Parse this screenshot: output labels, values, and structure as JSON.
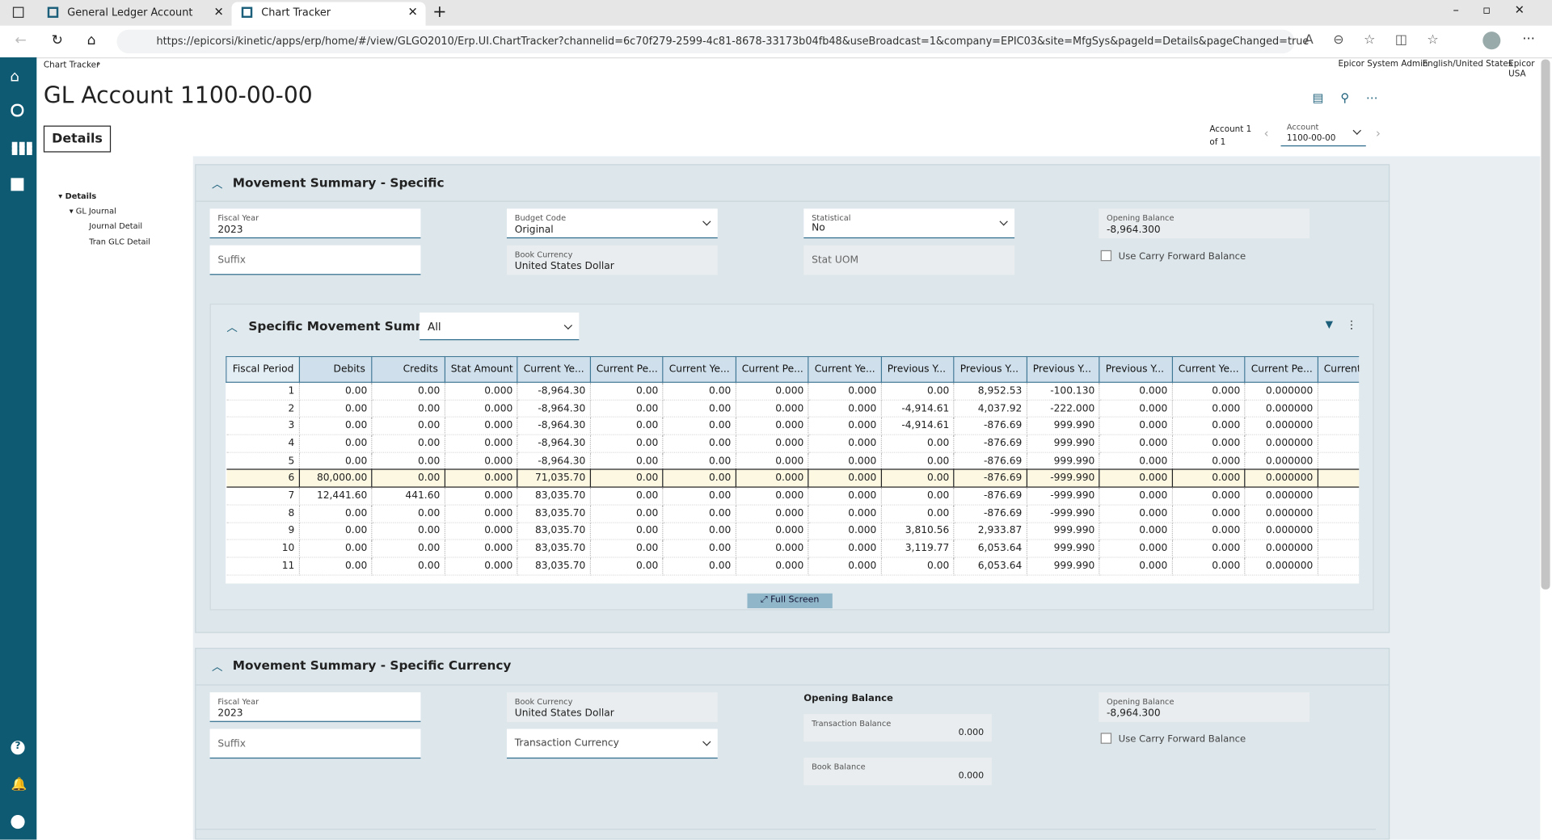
{
  "browser": {
    "tabs": [
      "General Ledger Account",
      "Chart Tracker"
    ],
    "url": "https://epicorsi/kinetic/apps/erp/home/#/view/GLGO2010/Erp.UI.ChartTracker?channelid=6c70f279-2599-4c81-8678-33173b04fb48&useBroadcast=1&company=EPIC03&site=MfgSys&pageId=Details&pageChanged=true"
  },
  "header": {
    "breadcrumb": "Chart Tracker",
    "user": "Epicor System Admin",
    "locale": "English/United States",
    "company": "Epicor USA",
    "title": "GL Account 1100-00-00",
    "tab": "Details",
    "record_nav": "Account 1 of 1",
    "account_label": "Account",
    "account_value": "1100-00-00"
  },
  "tree": [
    "Details",
    "GL Journal",
    "Journal Detail",
    "Tran GLC Detail"
  ],
  "section1": {
    "title": "Movement Summary - Specific",
    "fiscal_year": {
      "label": "Fiscal Year",
      "value": "2023"
    },
    "suffix": "Suffix",
    "budget_code": {
      "label": "Budget Code",
      "value": "Original"
    },
    "book_currency": {
      "label": "Book Currency",
      "value": "United States Dollar"
    },
    "statistical": {
      "label": "Statistical",
      "value": "No"
    },
    "stat_uom": "Stat UOM",
    "opening_balance": {
      "label": "Opening Balance",
      "value": "-8,964.300"
    },
    "carry_forward": "Use Carry Forward Balance"
  },
  "grid": {
    "title": "Specific Movement Summary",
    "filter": "All",
    "full_screen": "Full Screen",
    "columns": [
      "Fiscal Period",
      "Debits",
      "Credits",
      "Stat Amount",
      "Current Ye...",
      "Current Pe...",
      "Current Ye...",
      "Current Pe...",
      "Current Ye...",
      "Previous Y...",
      "Previous Y...",
      "Previous Y...",
      "Previous Y...",
      "Current Ye...",
      "Current Pe...",
      "Current Y"
    ],
    "rows": [
      [
        "1",
        "0.00",
        "0.00",
        "0.000",
        "-8,964.30",
        "0.00",
        "0.00",
        "0.000",
        "0.000",
        "0.00",
        "8,952.53",
        "-100.130",
        "0.000",
        "0.000",
        "0.000000"
      ],
      [
        "2",
        "0.00",
        "0.00",
        "0.000",
        "-8,964.30",
        "0.00",
        "0.00",
        "0.000",
        "0.000",
        "-4,914.61",
        "4,037.92",
        "-222.000",
        "0.000",
        "0.000",
        "0.000000"
      ],
      [
        "3",
        "0.00",
        "0.00",
        "0.000",
        "-8,964.30",
        "0.00",
        "0.00",
        "0.000",
        "0.000",
        "-4,914.61",
        "-876.69",
        "999.990",
        "0.000",
        "0.000",
        "0.000000"
      ],
      [
        "4",
        "0.00",
        "0.00",
        "0.000",
        "-8,964.30",
        "0.00",
        "0.00",
        "0.000",
        "0.000",
        "0.00",
        "-876.69",
        "999.990",
        "0.000",
        "0.000",
        "0.000000"
      ],
      [
        "5",
        "0.00",
        "0.00",
        "0.000",
        "-8,964.30",
        "0.00",
        "0.00",
        "0.000",
        "0.000",
        "0.00",
        "-876.69",
        "999.990",
        "0.000",
        "0.000",
        "0.000000"
      ],
      [
        "6",
        "80,000.00",
        "0.00",
        "0.000",
        "71,035.70",
        "0.00",
        "0.00",
        "0.000",
        "0.000",
        "0.00",
        "-876.69",
        "-999.990",
        "0.000",
        "0.000",
        "0.000000"
      ],
      [
        "7",
        "12,441.60",
        "441.60",
        "0.000",
        "83,035.70",
        "0.00",
        "0.00",
        "0.000",
        "0.000",
        "0.00",
        "-876.69",
        "-999.990",
        "0.000",
        "0.000",
        "0.000000"
      ],
      [
        "8",
        "0.00",
        "0.00",
        "0.000",
        "83,035.70",
        "0.00",
        "0.00",
        "0.000",
        "0.000",
        "0.00",
        "-876.69",
        "-999.990",
        "0.000",
        "0.000",
        "0.000000"
      ],
      [
        "9",
        "0.00",
        "0.00",
        "0.000",
        "83,035.70",
        "0.00",
        "0.00",
        "0.000",
        "0.000",
        "3,810.56",
        "2,933.87",
        "999.990",
        "0.000",
        "0.000",
        "0.000000"
      ],
      [
        "10",
        "0.00",
        "0.00",
        "0.000",
        "83,035.70",
        "0.00",
        "0.00",
        "0.000",
        "0.000",
        "3,119.77",
        "6,053.64",
        "999.990",
        "0.000",
        "0.000",
        "0.000000"
      ],
      [
        "11",
        "0.00",
        "0.00",
        "0.000",
        "83,035.70",
        "0.00",
        "0.00",
        "0.000",
        "0.000",
        "0.00",
        "6,053.64",
        "999.990",
        "0.000",
        "0.000",
        "0.000000"
      ]
    ]
  },
  "section2": {
    "title": "Movement Summary - Specific Currency",
    "fiscal_year": {
      "label": "Fiscal Year",
      "value": "2023"
    },
    "suffix": "Suffix",
    "book_currency": {
      "label": "Book Currency",
      "value": "United States Dollar"
    },
    "transaction_currency": "Transaction Currency",
    "opening_heading": "Opening Balance",
    "transaction_balance": {
      "label": "Transaction Balance",
      "value": "0.000"
    },
    "book_balance": {
      "label": "Book Balance",
      "value": "0.000"
    },
    "opening_balance": {
      "label": "Opening Balance",
      "value": "-8,964.300"
    },
    "carry_forward": "Use Carry Forward Balance"
  }
}
